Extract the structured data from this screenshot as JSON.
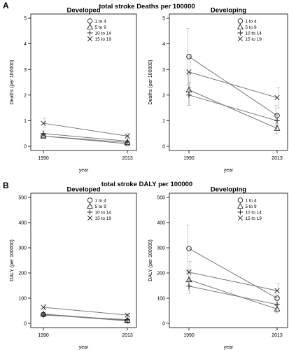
{
  "figure": {
    "sections": [
      {
        "letter": "A",
        "title": "total stroke Deaths per 100000",
        "panels": [
          {
            "title": "Developed",
            "ylabel": "Deaths (per 100000)",
            "xlabel": "year",
            "ylim": [
              0,
              5
            ],
            "yticks": [
              0,
              1,
              2,
              3,
              4,
              5
            ],
            "x": [
              "1990",
              "2013"
            ],
            "legend": [
              "1 to 4",
              "5 to 9",
              "10 to 14",
              "15 to 19"
            ],
            "series": [
              {
                "marker": "circle",
                "values": [
                  0.4,
                  0.1
                ],
                "err": [
                  [
                    0.35,
                    0.45
                  ],
                  [
                    0.08,
                    0.12
                  ]
                ]
              },
              {
                "marker": "triangle",
                "values": [
                  0.4,
                  0.15
                ],
                "err": [
                  [
                    0.35,
                    0.45
                  ],
                  [
                    0.12,
                    0.18
                  ]
                ]
              },
              {
                "marker": "plus",
                "values": [
                  0.5,
                  0.2
                ],
                "err": [
                  [
                    0.4,
                    0.6
                  ],
                  [
                    0.15,
                    0.25
                  ]
                ]
              },
              {
                "marker": "cross",
                "values": [
                  0.9,
                  0.4
                ],
                "err": [
                  [
                    0.75,
                    1.1
                  ],
                  [
                    0.33,
                    0.5
                  ]
                ]
              }
            ]
          },
          {
            "title": "Developing",
            "ylabel": "Deaths (per 100000)",
            "xlabel": "year",
            "ylim": [
              0,
              5
            ],
            "yticks": [
              0,
              1,
              2,
              3,
              4,
              5
            ],
            "x": [
              "1990",
              "2013"
            ],
            "legend": [
              "1 to 4",
              "5 to 9",
              "10 to 14",
              "15 to 19"
            ],
            "series": [
              {
                "marker": "circle",
                "values": [
                  3.5,
                  1.2
                ],
                "err": [
                  [
                    2.4,
                    4.6
                  ],
                  [
                    0.8,
                    1.6
                  ]
                ]
              },
              {
                "marker": "triangle",
                "values": [
                  2.2,
                  0.7
                ],
                "err": [
                  [
                    1.6,
                    2.8
                  ],
                  [
                    0.5,
                    0.9
                  ]
                ]
              },
              {
                "marker": "plus",
                "values": [
                  2.0,
                  1.0
                ],
                "err": [
                  [
                    1.6,
                    2.5
                  ],
                  [
                    0.8,
                    1.25
                  ]
                ]
              },
              {
                "marker": "cross",
                "values": [
                  2.9,
                  1.9
                ],
                "err": [
                  [
                    2.3,
                    3.6
                  ],
                  [
                    1.5,
                    2.3
                  ]
                ]
              }
            ]
          }
        ]
      },
      {
        "letter": "B",
        "title": "total stroke DALY per 100000",
        "panels": [
          {
            "title": "Developed",
            "ylabel": "DALY (per 100000)",
            "xlabel": "year",
            "ylim": [
              0,
              500
            ],
            "yticks": [
              0,
              100,
              200,
              300,
              400,
              500
            ],
            "x": [
              "1990",
              "2013"
            ],
            "legend": [
              "1 to 4",
              "5 to 9",
              "10 to 14",
              "15 to 19"
            ],
            "series": [
              {
                "marker": "circle",
                "values": [
                  35,
                  10
                ],
                "err": [
                  [
                    28,
                    42
                  ],
                  [
                    7,
                    13
                  ]
                ]
              },
              {
                "marker": "triangle",
                "values": [
                  37,
                  12
                ],
                "err": [
                  [
                    30,
                    44
                  ],
                  [
                    9,
                    15
                  ]
                ]
              },
              {
                "marker": "plus",
                "values": [
                  33,
                  15
                ],
                "err": [
                  [
                    27,
                    40
                  ],
                  [
                    11,
                    19
                  ]
                ]
              },
              {
                "marker": "cross",
                "values": [
                  64,
                  33
                ],
                "err": [
                  [
                    55,
                    75
                  ],
                  [
                    28,
                    38
                  ]
                ]
              }
            ]
          },
          {
            "title": "Developing",
            "ylabel": "DALY (per 100000)",
            "xlabel": "year",
            "ylim": [
              0,
              500
            ],
            "yticks": [
              0,
              100,
              200,
              300,
              400,
              500
            ],
            "x": [
              "1990",
              "2013"
            ],
            "legend": [
              "1 to 4",
              "5 to 9",
              "10 to 14",
              "15 to 19"
            ],
            "series": [
              {
                "marker": "circle",
                "values": [
                  297,
                  100
                ],
                "err": [
                  [
                    205,
                    390
                  ],
                  [
                    70,
                    130
                  ]
                ]
              },
              {
                "marker": "triangle",
                "values": [
                  173,
                  57
                ],
                "err": [
                  [
                    130,
                    215
                  ],
                  [
                    42,
                    72
                  ]
                ]
              },
              {
                "marker": "plus",
                "values": [
                  148,
                  75
                ],
                "err": [
                  [
                    120,
                    180
                  ],
                  [
                    60,
                    92
                  ]
                ]
              },
              {
                "marker": "cross",
                "values": [
                  203,
                  130
                ],
                "err": [
                  [
                    165,
                    245
                  ],
                  [
                    105,
                    158
                  ]
                ]
              }
            ]
          }
        ]
      }
    ]
  },
  "chart_data": [
    {
      "type": "line",
      "title": "Developed",
      "ylabel": "Deaths (per 100000)",
      "xlabel": "year",
      "x": [
        "1990",
        "2013"
      ],
      "ylim": [
        0,
        5
      ],
      "series": [
        {
          "name": "1 to 4",
          "values": [
            0.4,
            0.1
          ]
        },
        {
          "name": "5 to 9",
          "values": [
            0.4,
            0.15
          ]
        },
        {
          "name": "10 to 14",
          "values": [
            0.5,
            0.2
          ]
        },
        {
          "name": "15 to 19",
          "values": [
            0.9,
            0.4
          ]
        }
      ]
    },
    {
      "type": "line",
      "title": "Developing",
      "ylabel": "Deaths (per 100000)",
      "xlabel": "year",
      "x": [
        "1990",
        "2013"
      ],
      "ylim": [
        0,
        5
      ],
      "series": [
        {
          "name": "1 to 4",
          "values": [
            3.5,
            1.2
          ]
        },
        {
          "name": "5 to 9",
          "values": [
            2.2,
            0.7
          ]
        },
        {
          "name": "10 to 14",
          "values": [
            2.0,
            1.0
          ]
        },
        {
          "name": "15 to 19",
          "values": [
            2.9,
            1.9
          ]
        }
      ]
    },
    {
      "type": "line",
      "title": "Developed",
      "ylabel": "DALY (per 100000)",
      "xlabel": "year",
      "x": [
        "1990",
        "2013"
      ],
      "ylim": [
        0,
        500
      ],
      "series": [
        {
          "name": "1 to 4",
          "values": [
            35,
            10
          ]
        },
        {
          "name": "5 to 9",
          "values": [
            37,
            12
          ]
        },
        {
          "name": "10 to 14",
          "values": [
            33,
            15
          ]
        },
        {
          "name": "15 to 19",
          "values": [
            64,
            33
          ]
        }
      ]
    },
    {
      "type": "line",
      "title": "Developing",
      "ylabel": "DALY (per 100000)",
      "xlabel": "year",
      "x": [
        "1990",
        "2013"
      ],
      "ylim": [
        0,
        500
      ],
      "series": [
        {
          "name": "1 to 4",
          "values": [
            297,
            100
          ]
        },
        {
          "name": "5 to 9",
          "values": [
            173,
            57
          ]
        },
        {
          "name": "10 to 14",
          "values": [
            148,
            75
          ]
        },
        {
          "name": "15 to 19",
          "values": [
            203,
            130
          ]
        }
      ]
    }
  ],
  "colors": {
    "line": "#7a7a7a",
    "errorbar": "#b5b5b5",
    "marker": "#222222",
    "axis": "#000000"
  }
}
